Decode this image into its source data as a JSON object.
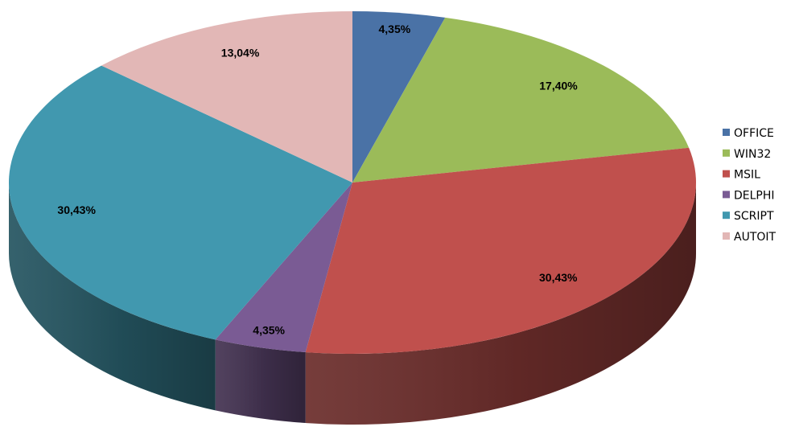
{
  "chart_data": {
    "type": "pie",
    "style": "3d",
    "title": "",
    "legend_position": "right",
    "start_angle_deg": 0,
    "direction": "clockwise",
    "categories": [
      "OFFICE",
      "WIN32",
      "MSIL",
      "DELPHI",
      "SCRIPT",
      "AUTOIT"
    ],
    "values": [
      4.35,
      17.4,
      30.43,
      4.35,
      30.43,
      13.04
    ],
    "labels": [
      "4,35%",
      "17,40%",
      "30,43%",
      "4,35%",
      "30,43%",
      "13,04%"
    ],
    "colors": [
      "#4A72A6",
      "#9BBB59",
      "#C0504D",
      "#7A5B94",
      "#4198AF",
      "#E2B7B6"
    ]
  }
}
